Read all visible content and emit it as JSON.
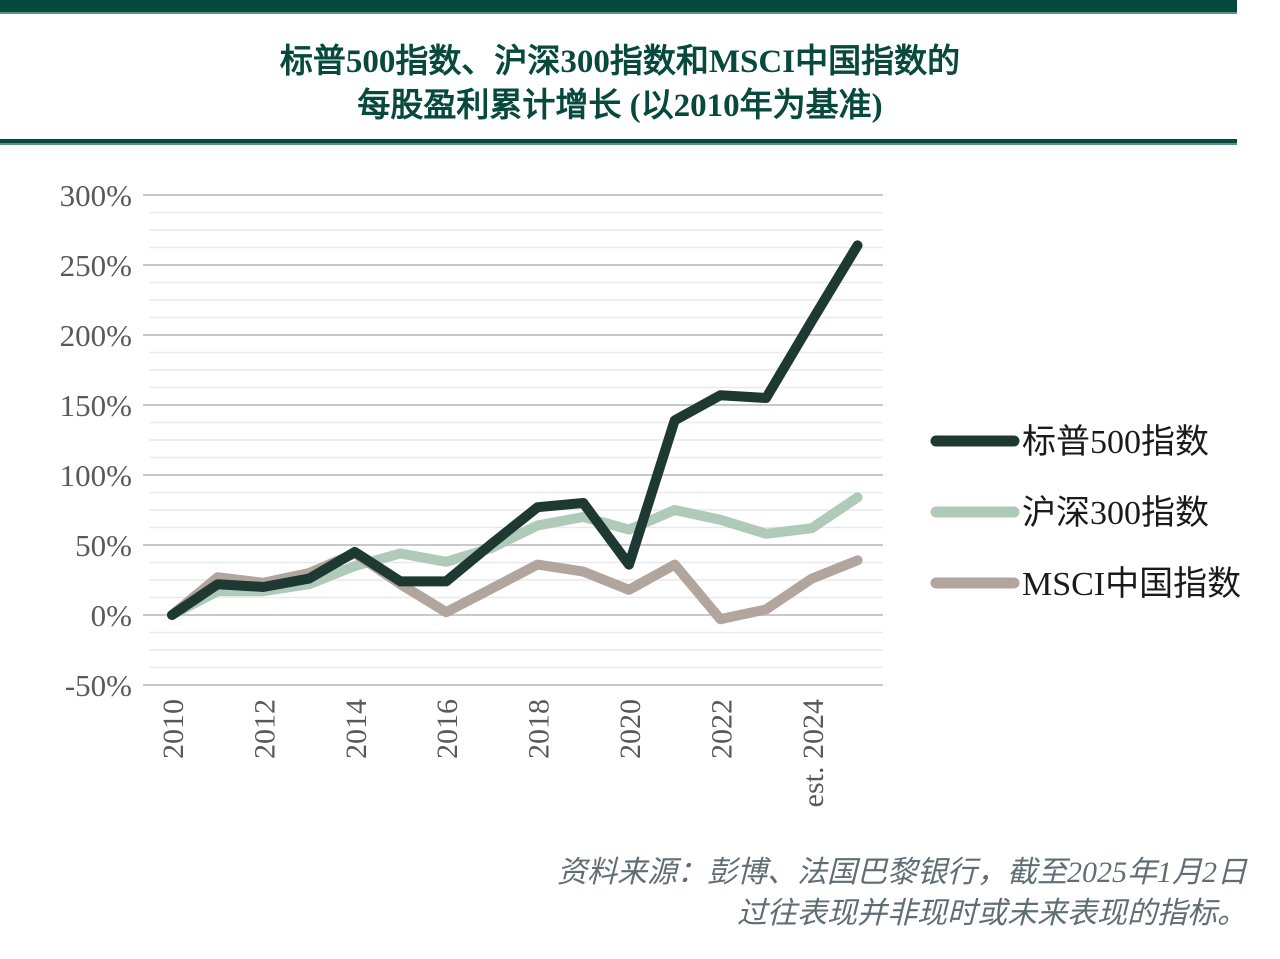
{
  "title": {
    "line1": "标普500指数、沪深300指数和MSCI中国指数的",
    "line2": "每股盈利累计增长 (以2010年为基准)"
  },
  "source": {
    "line1": "资料来源：彭博、法国巴黎银行，截至2025年1月2日",
    "line2": "过往表现并非现时或未来表现的指标。"
  },
  "colors": {
    "accent_green": "#07493d",
    "accent_edge": "#5b9284",
    "sp500_line": "#1e3832",
    "csi300_line": "#afcab8",
    "msci_line": "#b2a59d",
    "axis_text": "#595959",
    "grid_major": "#c9c9c9",
    "grid_minor": "#e9e9e9",
    "legend_text": "#1a1a1a",
    "source_text": "#5f6e74"
  },
  "chart_data": {
    "type": "line",
    "x": [
      2010,
      2011,
      2012,
      2013,
      2014,
      2015,
      2016,
      2017,
      2018,
      2019,
      2020,
      2021,
      2022,
      2023,
      2024,
      2025
    ],
    "series": [
      {
        "name": "标普500指数",
        "color_key": "sp500_line",
        "values": [
          0,
          22,
          20,
          26,
          45,
          24,
          24,
          51,
          77,
          80,
          36,
          139,
          157,
          155,
          210,
          264
        ]
      },
      {
        "name": "沪深300指数",
        "color_key": "csi300_line",
        "values": [
          0,
          17,
          17,
          22,
          35,
          44,
          38,
          48,
          64,
          70,
          61,
          75,
          68,
          58,
          62,
          84
        ]
      },
      {
        "name": "MSCI中国指数",
        "color_key": "msci_line",
        "values": [
          0,
          27,
          23,
          30,
          44,
          22,
          2,
          19,
          36,
          31,
          18,
          36,
          -3,
          4,
          26,
          39
        ]
      }
    ],
    "ylim": [
      -50,
      300
    ],
    "y_ticks": [
      300,
      250,
      200,
      150,
      100,
      50,
      0,
      -50
    ],
    "y_tick_labels": [
      "300%",
      "250%",
      "200%",
      "150%",
      "100%",
      "50%",
      "0%",
      "-50%"
    ],
    "x_ticks": [
      2010,
      2012,
      2014,
      2016,
      2018,
      2020,
      2022,
      2024
    ],
    "x_tick_labels": [
      "2010",
      "2012",
      "2014",
      "2016",
      "2018",
      "2020",
      "2022",
      "est. 2024"
    ],
    "grid": "major+minor",
    "minor_step": 12.5,
    "legend_position": "right"
  }
}
